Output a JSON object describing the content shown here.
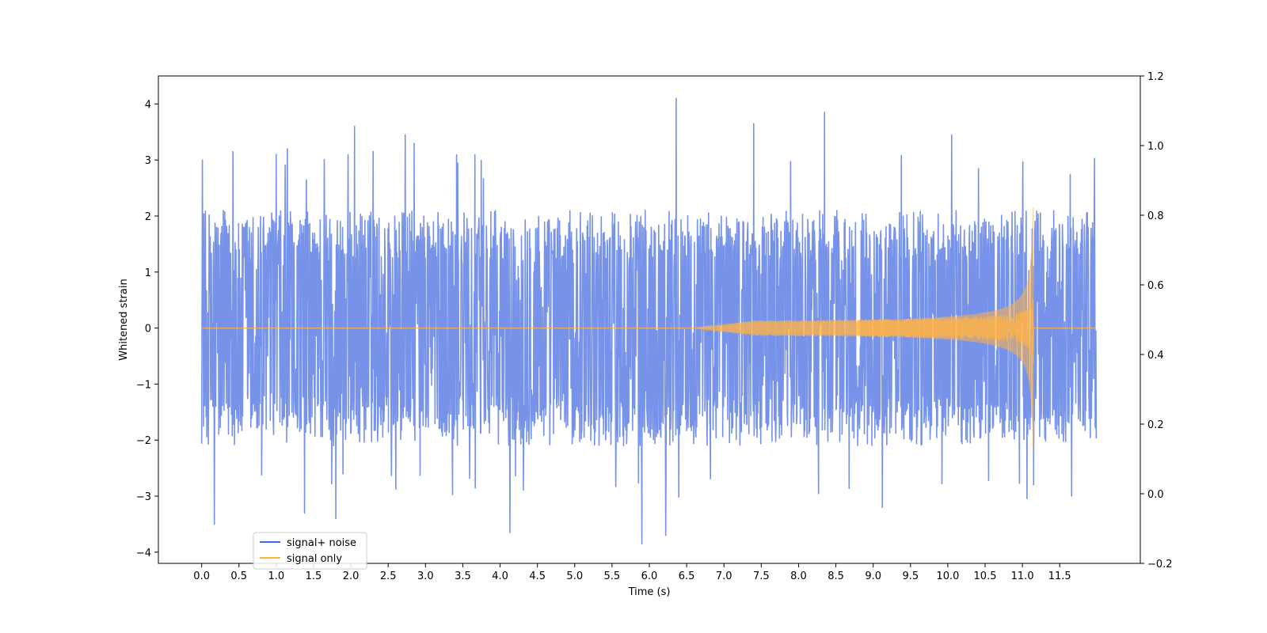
{
  "chart_data": {
    "type": "line",
    "xlabel": "Time (s)",
    "ylabel": "Whitened strain",
    "xlim": [
      -0.58,
      12.58
    ],
    "ylim": [
      -4.2,
      4.5
    ],
    "y2lim": [
      -0.2,
      1.2
    ],
    "x_ticks": [
      "0.0",
      "0.5",
      "1.0",
      "1.5",
      "2.0",
      "2.5",
      "3.0",
      "3.5",
      "4.0",
      "4.5",
      "5.0",
      "5.5",
      "6.0",
      "6.5",
      "7.0",
      "7.5",
      "8.0",
      "8.5",
      "9.0",
      "9.5",
      "10.0",
      "10.5",
      "11.0",
      "11.5"
    ],
    "y_ticks": [
      "−4",
      "−3",
      "−2",
      "−1",
      "0",
      "1",
      "2",
      "3",
      "4"
    ],
    "y2_ticks": [
      "−0.2",
      "0.0",
      "0.2",
      "0.4",
      "0.6",
      "0.8",
      "1.0",
      "1.2"
    ],
    "grid": false,
    "legend_position": "lower-left",
    "series": [
      {
        "name": "signal+ noise",
        "color": "#4169e1",
        "x_range": [
          0.0,
          11.99
        ],
        "noise_band": [
          -2.0,
          2.0
        ],
        "peaks": [
          {
            "x": 0.01,
            "y": 3.0
          },
          {
            "x": 0.17,
            "y": -3.5
          },
          {
            "x": 0.42,
            "y": 3.15
          },
          {
            "x": 1.0,
            "y": 3.1
          },
          {
            "x": 1.15,
            "y": 3.2
          },
          {
            "x": 1.38,
            "y": -3.3
          },
          {
            "x": 1.8,
            "y": -3.4
          },
          {
            "x": 2.05,
            "y": 3.6
          },
          {
            "x": 2.3,
            "y": 3.15
          },
          {
            "x": 2.73,
            "y": 3.45
          },
          {
            "x": 2.85,
            "y": 3.3
          },
          {
            "x": 4.13,
            "y": -3.65
          },
          {
            "x": 5.9,
            "y": -3.85
          },
          {
            "x": 6.22,
            "y": -3.7
          },
          {
            "x": 6.36,
            "y": 4.1
          },
          {
            "x": 7.4,
            "y": 3.65
          },
          {
            "x": 8.35,
            "y": 3.85
          },
          {
            "x": 9.12,
            "y": -3.2
          },
          {
            "x": 10.05,
            "y": 3.45
          },
          {
            "x": 11.15,
            "y": 3.5
          },
          {
            "x": 11.15,
            "y": -2.8
          }
        ]
      },
      {
        "name": "signal only",
        "color": "#ffb347",
        "x_range": [
          0.0,
          11.99
        ],
        "chirp_start": 6.6,
        "merger": 11.15,
        "peak_amplitude": 2.15
      }
    ]
  }
}
